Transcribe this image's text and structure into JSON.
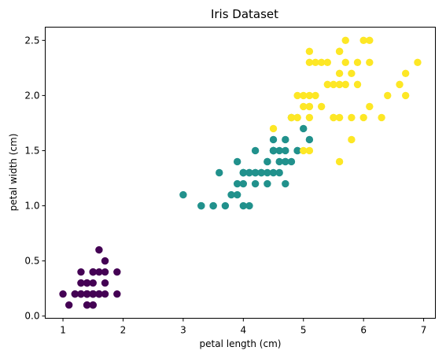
{
  "chart_data": {
    "type": "scatter",
    "title": "Iris Dataset",
    "xlabel": "petal length (cm)",
    "ylabel": "petal width (cm)",
    "xlim": [
      0.705,
      7.195
    ],
    "ylim": [
      -0.02,
      2.62
    ],
    "xticks": [
      {
        "value": 1,
        "label": "1"
      },
      {
        "value": 2,
        "label": "2"
      },
      {
        "value": 3,
        "label": "3"
      },
      {
        "value": 4,
        "label": "4"
      },
      {
        "value": 5,
        "label": "5"
      },
      {
        "value": 6,
        "label": "6"
      },
      {
        "value": 7,
        "label": "7"
      }
    ],
    "yticks": [
      {
        "value": 0.0,
        "label": "0.0"
      },
      {
        "value": 0.5,
        "label": "0.5"
      },
      {
        "value": 1.0,
        "label": "1.0"
      },
      {
        "value": 1.5,
        "label": "1.5"
      },
      {
        "value": 2.0,
        "label": "2.0"
      },
      {
        "value": 2.5,
        "label": "2.5"
      }
    ],
    "grid": false,
    "legend": "none",
    "series": [
      {
        "color": "#440154",
        "points": [
          [
            1.4,
            0.2
          ],
          [
            1.4,
            0.2
          ],
          [
            1.3,
            0.2
          ],
          [
            1.5,
            0.2
          ],
          [
            1.4,
            0.2
          ],
          [
            1.7,
            0.4
          ],
          [
            1.4,
            0.3
          ],
          [
            1.5,
            0.2
          ],
          [
            1.4,
            0.2
          ],
          [
            1.5,
            0.1
          ],
          [
            1.5,
            0.2
          ],
          [
            1.6,
            0.2
          ],
          [
            1.4,
            0.1
          ],
          [
            1.1,
            0.1
          ],
          [
            1.2,
            0.2
          ],
          [
            1.5,
            0.4
          ],
          [
            1.3,
            0.4
          ],
          [
            1.4,
            0.3
          ],
          [
            1.7,
            0.3
          ],
          [
            1.5,
            0.3
          ],
          [
            1.7,
            0.2
          ],
          [
            1.5,
            0.4
          ],
          [
            1.0,
            0.2
          ],
          [
            1.7,
            0.5
          ],
          [
            1.9,
            0.2
          ],
          [
            1.6,
            0.2
          ],
          [
            1.6,
            0.4
          ],
          [
            1.5,
            0.2
          ],
          [
            1.4,
            0.2
          ],
          [
            1.6,
            0.2
          ],
          [
            1.6,
            0.2
          ],
          [
            1.5,
            0.4
          ],
          [
            1.5,
            0.1
          ],
          [
            1.4,
            0.2
          ],
          [
            1.5,
            0.2
          ],
          [
            1.2,
            0.2
          ],
          [
            1.3,
            0.2
          ],
          [
            1.4,
            0.1
          ],
          [
            1.3,
            0.2
          ],
          [
            1.5,
            0.2
          ],
          [
            1.3,
            0.3
          ],
          [
            1.3,
            0.3
          ],
          [
            1.3,
            0.2
          ],
          [
            1.6,
            0.6
          ],
          [
            1.9,
            0.4
          ],
          [
            1.4,
            0.3
          ],
          [
            1.6,
            0.2
          ],
          [
            1.4,
            0.2
          ],
          [
            1.5,
            0.2
          ],
          [
            1.4,
            0.2
          ]
        ]
      },
      {
        "color": "#21918c",
        "points": [
          [
            4.7,
            1.4
          ],
          [
            4.5,
            1.5
          ],
          [
            4.9,
            1.5
          ],
          [
            4.0,
            1.3
          ],
          [
            4.6,
            1.5
          ],
          [
            4.5,
            1.3
          ],
          [
            4.7,
            1.6
          ],
          [
            3.3,
            1.0
          ],
          [
            4.6,
            1.3
          ],
          [
            3.9,
            1.4
          ],
          [
            3.5,
            1.0
          ],
          [
            4.2,
            1.5
          ],
          [
            4.0,
            1.0
          ],
          [
            4.7,
            1.4
          ],
          [
            3.6,
            1.3
          ],
          [
            4.4,
            1.4
          ],
          [
            4.5,
            1.5
          ],
          [
            4.1,
            1.0
          ],
          [
            4.5,
            1.5
          ],
          [
            3.9,
            1.1
          ],
          [
            4.8,
            1.8
          ],
          [
            4.0,
            1.3
          ],
          [
            4.9,
            1.5
          ],
          [
            4.7,
            1.2
          ],
          [
            4.3,
            1.3
          ],
          [
            4.4,
            1.4
          ],
          [
            4.8,
            1.4
          ],
          [
            5.0,
            1.7
          ],
          [
            4.5,
            1.5
          ],
          [
            3.5,
            1.0
          ],
          [
            3.8,
            1.1
          ],
          [
            3.7,
            1.0
          ],
          [
            3.9,
            1.2
          ],
          [
            5.1,
            1.6
          ],
          [
            4.5,
            1.5
          ],
          [
            4.5,
            1.6
          ],
          [
            4.7,
            1.5
          ],
          [
            4.4,
            1.3
          ],
          [
            4.1,
            1.3
          ],
          [
            4.0,
            1.3
          ],
          [
            4.4,
            1.2
          ],
          [
            4.6,
            1.4
          ],
          [
            4.0,
            1.2
          ],
          [
            3.3,
            1.0
          ],
          [
            4.2,
            1.3
          ],
          [
            4.2,
            1.2
          ],
          [
            4.2,
            1.3
          ],
          [
            4.3,
            1.3
          ],
          [
            3.0,
            1.1
          ],
          [
            4.1,
            1.3
          ]
        ]
      },
      {
        "color": "#fde725",
        "points": [
          [
            6.0,
            2.5
          ],
          [
            5.1,
            1.9
          ],
          [
            5.9,
            2.1
          ],
          [
            5.6,
            1.8
          ],
          [
            5.8,
            2.2
          ],
          [
            6.6,
            2.1
          ],
          [
            4.5,
            1.7
          ],
          [
            6.3,
            1.8
          ],
          [
            5.8,
            1.8
          ],
          [
            6.1,
            2.5
          ],
          [
            5.1,
            2.0
          ],
          [
            5.3,
            1.9
          ],
          [
            5.5,
            2.1
          ],
          [
            5.0,
            2.0
          ],
          [
            5.1,
            2.4
          ],
          [
            5.3,
            2.3
          ],
          [
            5.5,
            1.8
          ],
          [
            6.7,
            2.2
          ],
          [
            6.9,
            2.3
          ],
          [
            5.0,
            1.5
          ],
          [
            5.7,
            2.3
          ],
          [
            4.9,
            2.0
          ],
          [
            6.7,
            2.0
          ],
          [
            4.9,
            1.8
          ],
          [
            5.7,
            2.1
          ],
          [
            6.0,
            1.8
          ],
          [
            4.8,
            1.8
          ],
          [
            4.9,
            1.8
          ],
          [
            5.6,
            2.1
          ],
          [
            5.8,
            1.6
          ],
          [
            6.1,
            1.9
          ],
          [
            6.4,
            2.0
          ],
          [
            5.6,
            2.2
          ],
          [
            5.1,
            1.5
          ],
          [
            5.6,
            1.4
          ],
          [
            6.1,
            2.3
          ],
          [
            5.6,
            2.4
          ],
          [
            5.5,
            1.8
          ],
          [
            4.8,
            1.8
          ],
          [
            5.4,
            2.1
          ],
          [
            5.6,
            2.4
          ],
          [
            5.1,
            2.3
          ],
          [
            5.1,
            1.9
          ],
          [
            5.9,
            2.3
          ],
          [
            5.7,
            2.5
          ],
          [
            5.2,
            2.3
          ],
          [
            5.0,
            1.9
          ],
          [
            5.2,
            2.0
          ],
          [
            5.4,
            2.3
          ],
          [
            5.1,
            1.8
          ]
        ]
      }
    ]
  }
}
